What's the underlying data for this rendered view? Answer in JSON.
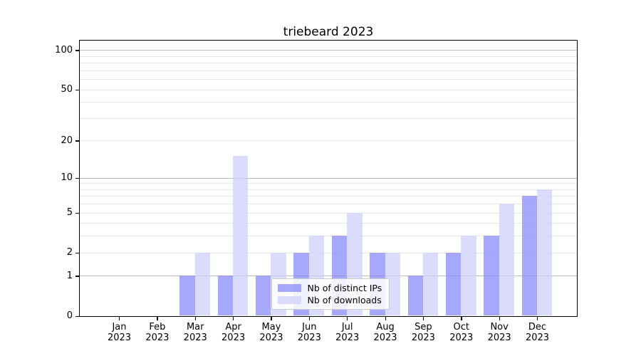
{
  "title": "triebeard 2023",
  "colors": {
    "background": "#ffffff",
    "frame": "#000000",
    "major_gridline": "#bbbbbb",
    "minor_gridline": "#e8e8e8",
    "distinct_ips_bar": "rgba(132,134,250,0.72)",
    "downloads_bar": "rgba(205,207,249,0.72)",
    "legend_border": "#cccccc",
    "text": "#000000"
  },
  "chart_data": {
    "type": "bar",
    "title": "triebeard 2023",
    "months": [
      "Jan",
      "Feb",
      "Mar",
      "Apr",
      "May",
      "Jun",
      "Jul",
      "Aug",
      "Sep",
      "Oct",
      "Nov",
      "Dec"
    ],
    "year": "2023",
    "categories": [
      "Jan 2023",
      "Feb 2023",
      "Mar 2023",
      "Apr 2023",
      "May 2023",
      "Jun 2023",
      "Jul 2023",
      "Aug 2023",
      "Sep 2023",
      "Oct 2023",
      "Nov 2023",
      "Dec 2023"
    ],
    "series": [
      {
        "name": "Nb of distinct IPs",
        "key": "distinct-ips",
        "color": "rgba(132,134,250,0.72)",
        "values": [
          0,
          0,
          1,
          1,
          1,
          2,
          3,
          2,
          1,
          2,
          3,
          7
        ]
      },
      {
        "name": "Nb of downloads",
        "key": "downloads",
        "color": "rgba(205,207,249,0.72)",
        "values": [
          0,
          0,
          2,
          15,
          2,
          3,
          5,
          2,
          2,
          3,
          6,
          8
        ]
      }
    ],
    "xlabel": "",
    "ylabel": "",
    "yscale": "log1p",
    "ylim": [
      0,
      119
    ],
    "y_ticks": [
      0,
      1,
      2,
      5,
      10,
      20,
      50,
      100
    ],
    "y_major_gridlines": [
      1,
      10,
      100
    ],
    "y_minor_gridlines": [
      2,
      3,
      4,
      5,
      6,
      7,
      8,
      9,
      20,
      30,
      40,
      50,
      60,
      70,
      80,
      90
    ],
    "grid": "on",
    "legend_position": "inside lower center",
    "bar_width_frac": 0.4
  }
}
